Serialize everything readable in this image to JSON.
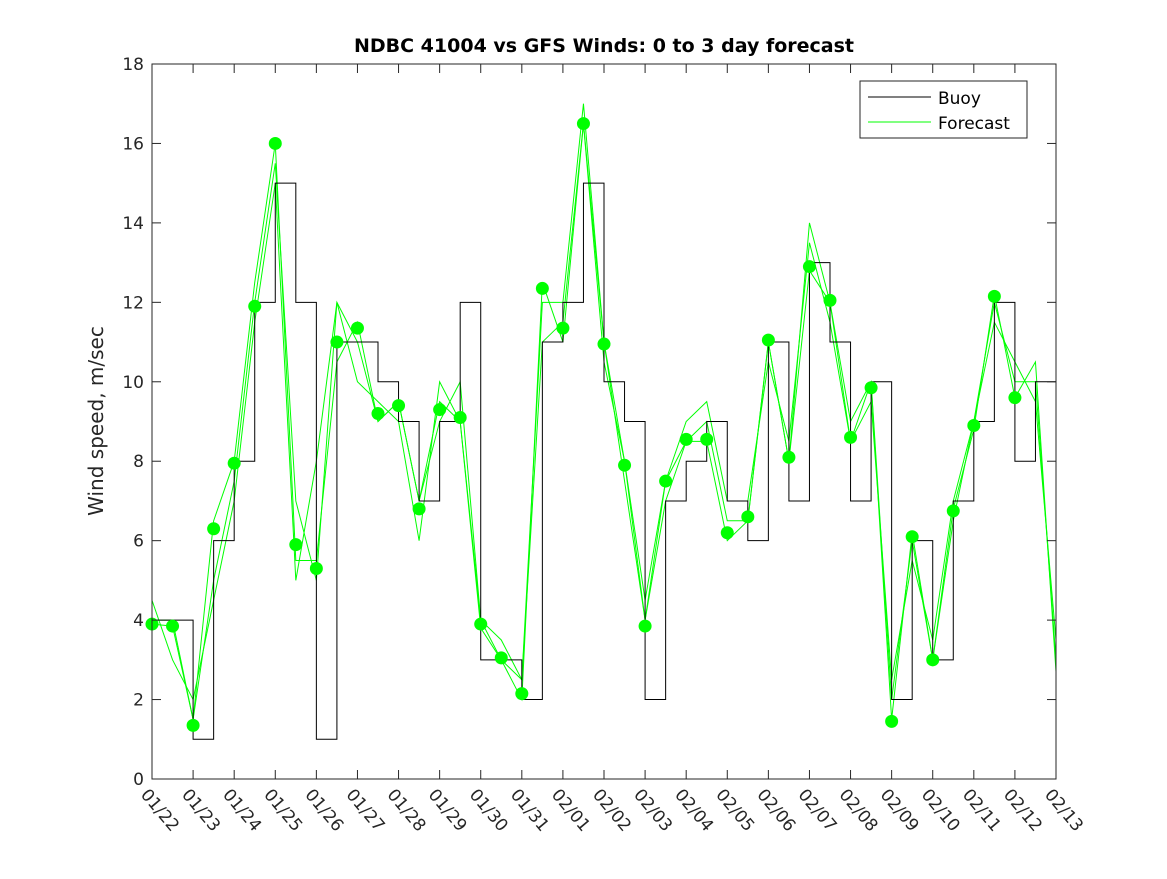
{
  "chart_data": {
    "type": "line",
    "title": "NDBC 41004 vs GFS Winds: 0 to 3 day forecast",
    "xlabel": "",
    "ylabel": "Wind speed, m/sec",
    "ylim": [
      0,
      18
    ],
    "yticks": [
      0,
      2,
      4,
      6,
      8,
      10,
      12,
      14,
      16,
      18
    ],
    "xlim_days": [
      0,
      22
    ],
    "xtick_labels": [
      "01/22",
      "01/23",
      "01/24",
      "01/25",
      "01/26",
      "01/27",
      "01/28",
      "01/29",
      "01/30",
      "01/31",
      "02/01",
      "02/02",
      "02/03",
      "02/04",
      "02/05",
      "02/06",
      "02/07",
      "02/08",
      "02/09",
      "02/10",
      "02/11",
      "02/12",
      "02/13"
    ],
    "legend": {
      "position": "top-right",
      "entries": [
        "Buoy",
        "Forecast"
      ]
    },
    "colors": {
      "buoy": "#000000",
      "forecast": "#00ff00"
    },
    "x_step_days": 0.5,
    "buoy": [
      4,
      4,
      1,
      6,
      8,
      12,
      15,
      12,
      1,
      11,
      11,
      10,
      9,
      7,
      9,
      12,
      3,
      3,
      2,
      11,
      12,
      15,
      10,
      9,
      2,
      7,
      8,
      9,
      7,
      6,
      11,
      7,
      13,
      11,
      7,
      10,
      2,
      6,
      3,
      7,
      9,
      12,
      8,
      10,
      6
    ],
    "forecast_series": [
      [
        3.9,
        3.85,
        1.5,
        5,
        7.5,
        12,
        15.5,
        7,
        5,
        12,
        11,
        9,
        9.5,
        7,
        9,
        10,
        4,
        3,
        2.5,
        12,
        12,
        17,
        11,
        8,
        4,
        7,
        8.5,
        9,
        6.5,
        6.5,
        11,
        8,
        14,
        12,
        9,
        10,
        2,
        6,
        3,
        6.5,
        9,
        12,
        10,
        10,
        3
      ],
      [
        4.5,
        3,
        2,
        4.5,
        7,
        11.5,
        15,
        5,
        8,
        12,
        10,
        9.5,
        9,
        6,
        10,
        9,
        4,
        3.5,
        2.5,
        11,
        11.5,
        16.5,
        10.5,
        8,
        4.5,
        7.5,
        9,
        9.5,
        7,
        7,
        10.5,
        8.5,
        13.5,
        11.5,
        8.5,
        9.5,
        2.5,
        5.5,
        3.5,
        7,
        9,
        11.5,
        10.5,
        9.5,
        3.5
      ],
      [
        4,
        4,
        1.5,
        6.5,
        8,
        12.5,
        16,
        5.5,
        5.5,
        10.5,
        11.5,
        9,
        9.5,
        7,
        9.5,
        9,
        3.8,
        3,
        2,
        12.5,
        11,
        16.5,
        11,
        7.5,
        4,
        7.5,
        8.5,
        8.5,
        6,
        6.5,
        11,
        8,
        12.8,
        12,
        8.5,
        10,
        1.5,
        6.2,
        3,
        6.8,
        8.8,
        12.2,
        9.6,
        10.5,
        2.7
      ]
    ],
    "forecast_points": [
      3.9,
      3.85,
      1.35,
      6.3,
      7.95,
      11.9,
      16.0,
      5.9,
      5.3,
      11.0,
      11.35,
      9.2,
      9.4,
      6.8,
      9.3,
      9.1,
      3.9,
      3.05,
      2.15,
      12.35,
      11.35,
      16.5,
      10.95,
      7.9,
      3.85,
      7.5,
      8.55,
      8.55,
      6.2,
      6.6,
      11.05,
      8.1,
      12.9,
      12.05,
      8.6,
      9.85,
      1.45,
      6.1,
      3.0,
      6.75,
      8.9,
      12.15,
      9.6
    ]
  }
}
